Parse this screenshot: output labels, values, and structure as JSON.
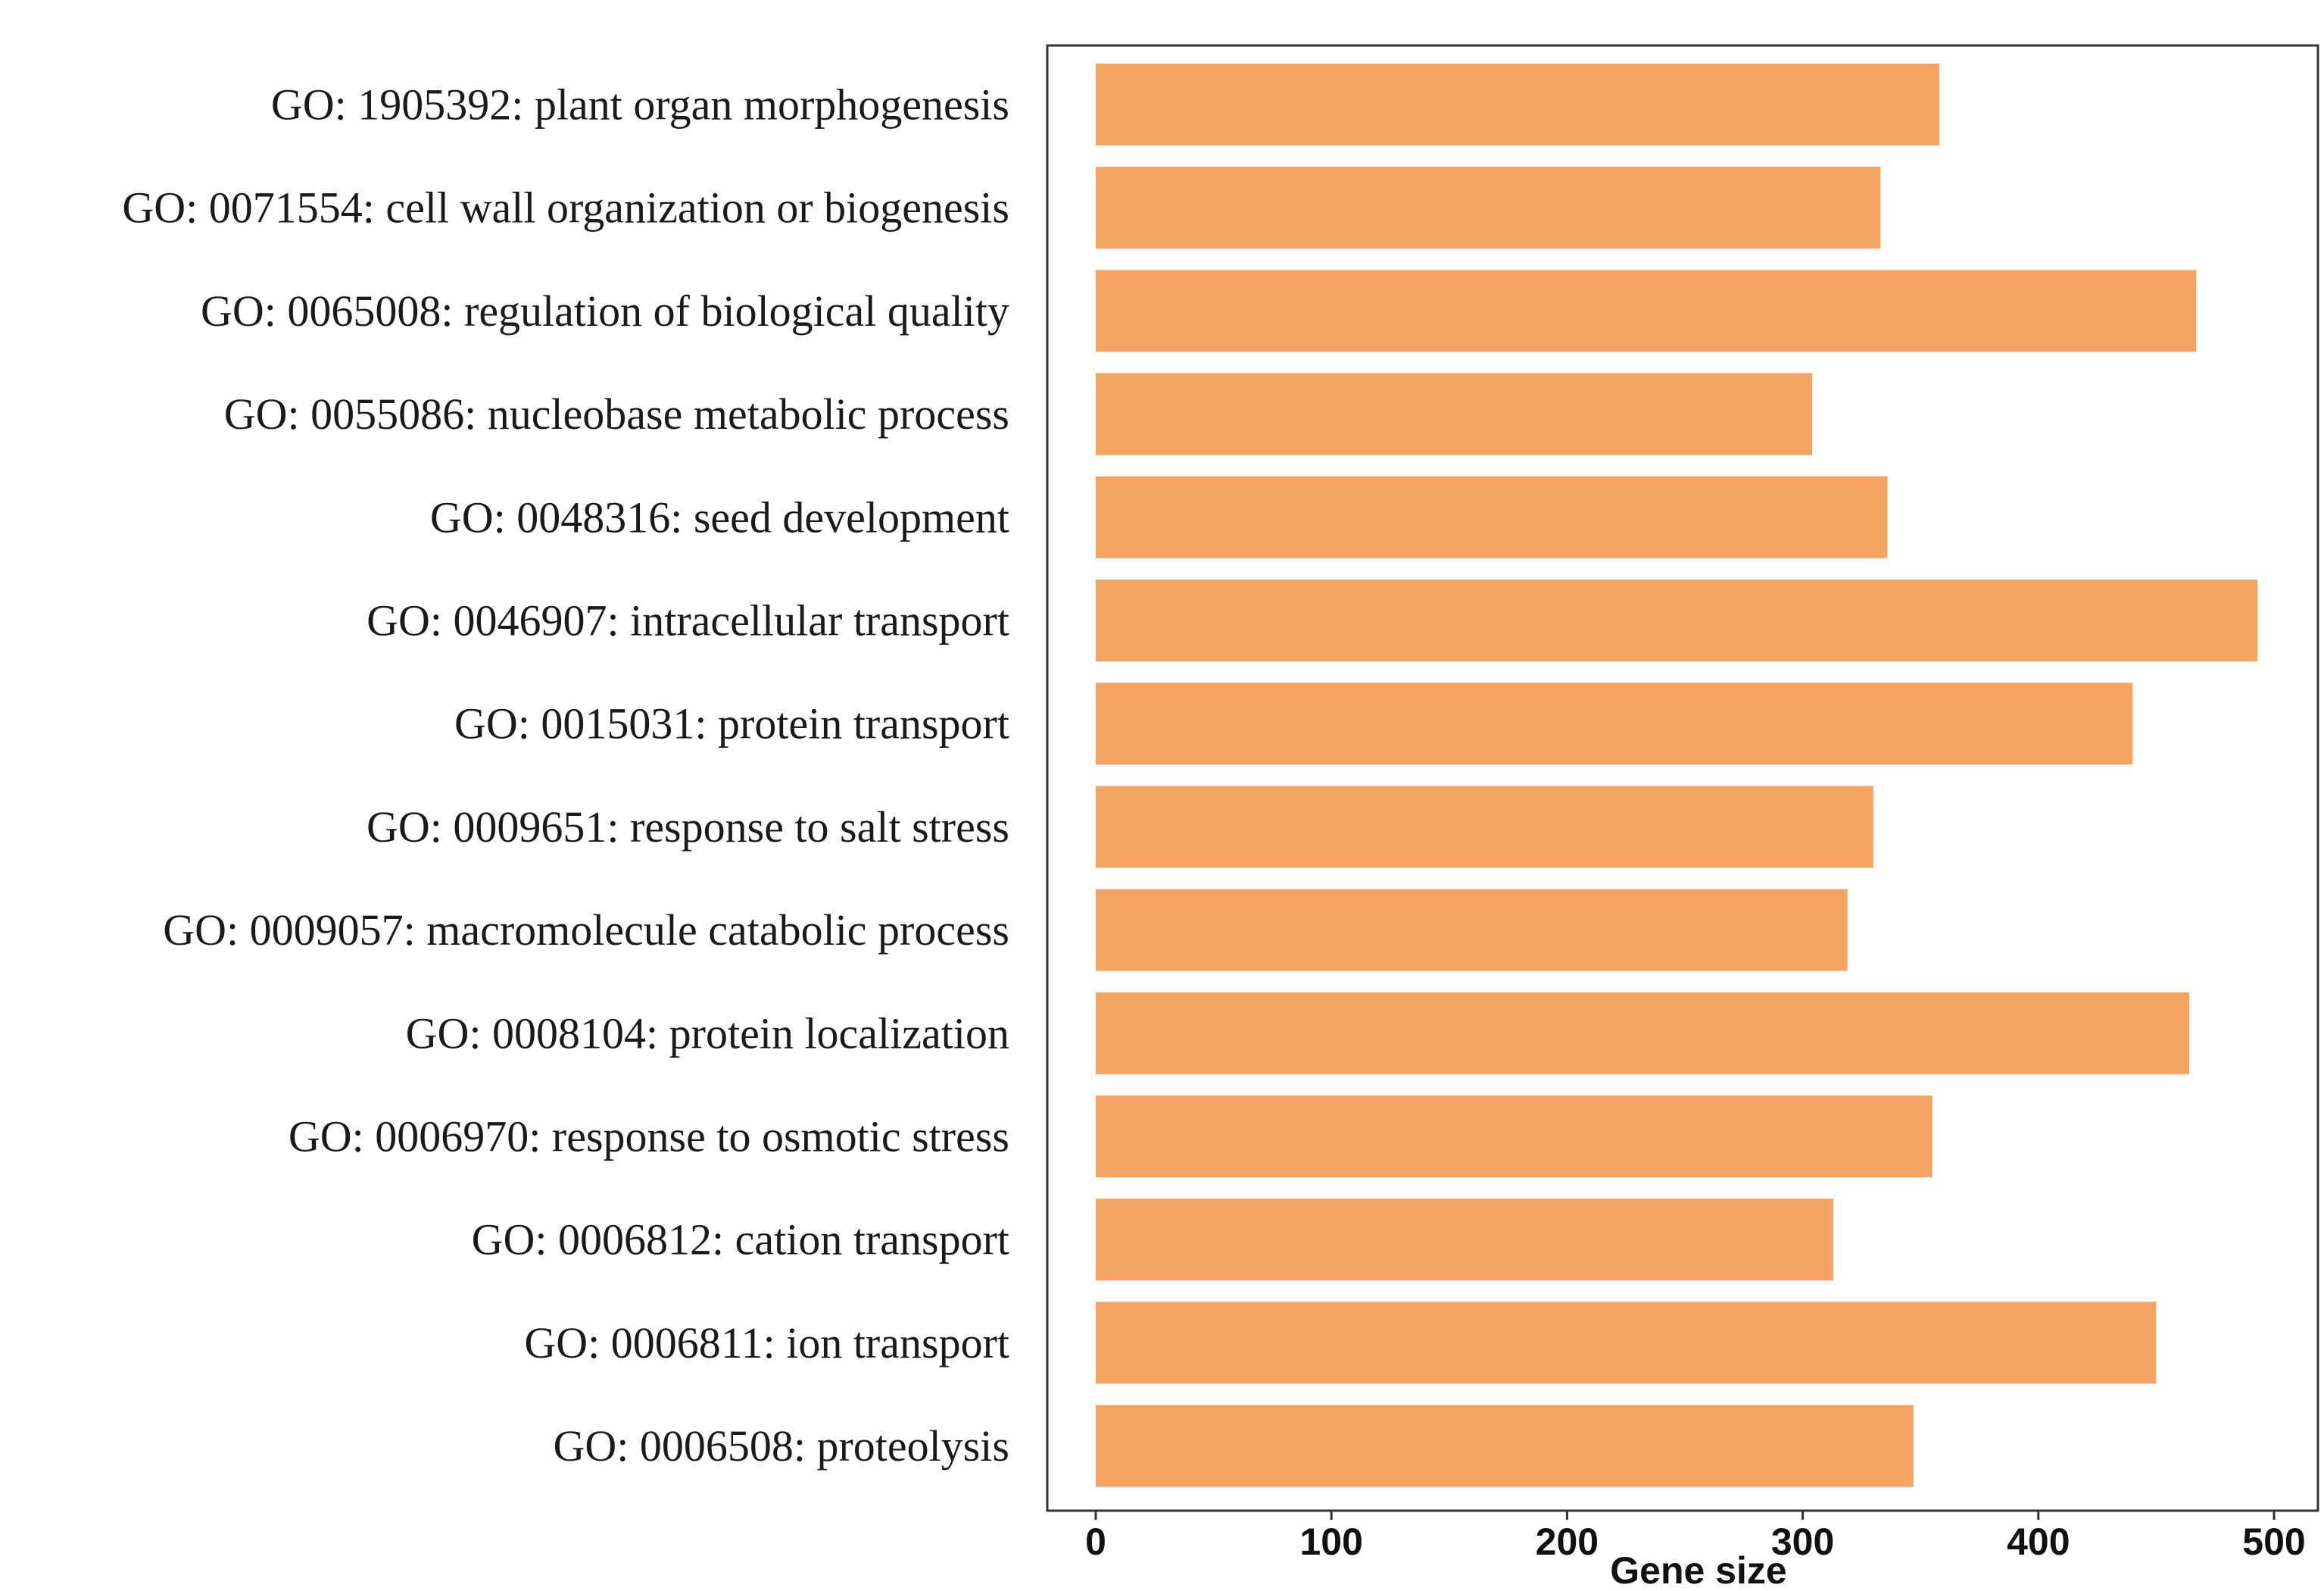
{
  "chart_data": {
    "type": "bar",
    "orientation": "horizontal",
    "categories": [
      "GO: 1905392: plant organ morphogenesis",
      "GO: 0071554: cell wall organization or biogenesis",
      "GO: 0065008: regulation of biological quality",
      "GO: 0055086: nucleobase metabolic process",
      "GO: 0048316: seed development",
      "GO: 0046907: intracellular transport",
      "GO: 0015031: protein transport",
      "GO: 0009651: response to salt stress",
      "GO: 0009057: macromolecule catabolic process",
      "GO: 0008104: protein localization",
      "GO: 0006970: response to osmotic stress",
      "GO: 0006812: cation transport",
      "GO: 0006811: ion transport",
      "GO: 0006508: proteolysis"
    ],
    "values": [
      358,
      333,
      467,
      304,
      336,
      493,
      440,
      330,
      319,
      464,
      355,
      313,
      450,
      347
    ],
    "title": "",
    "xlabel": "Gene size",
    "ylabel": "",
    "xlim": [
      0,
      500
    ],
    "xticks": [
      "0",
      "100",
      "200",
      "300",
      "400",
      "500"
    ],
    "bar_color": "#F4A460",
    "grid": false,
    "legend": "none"
  }
}
